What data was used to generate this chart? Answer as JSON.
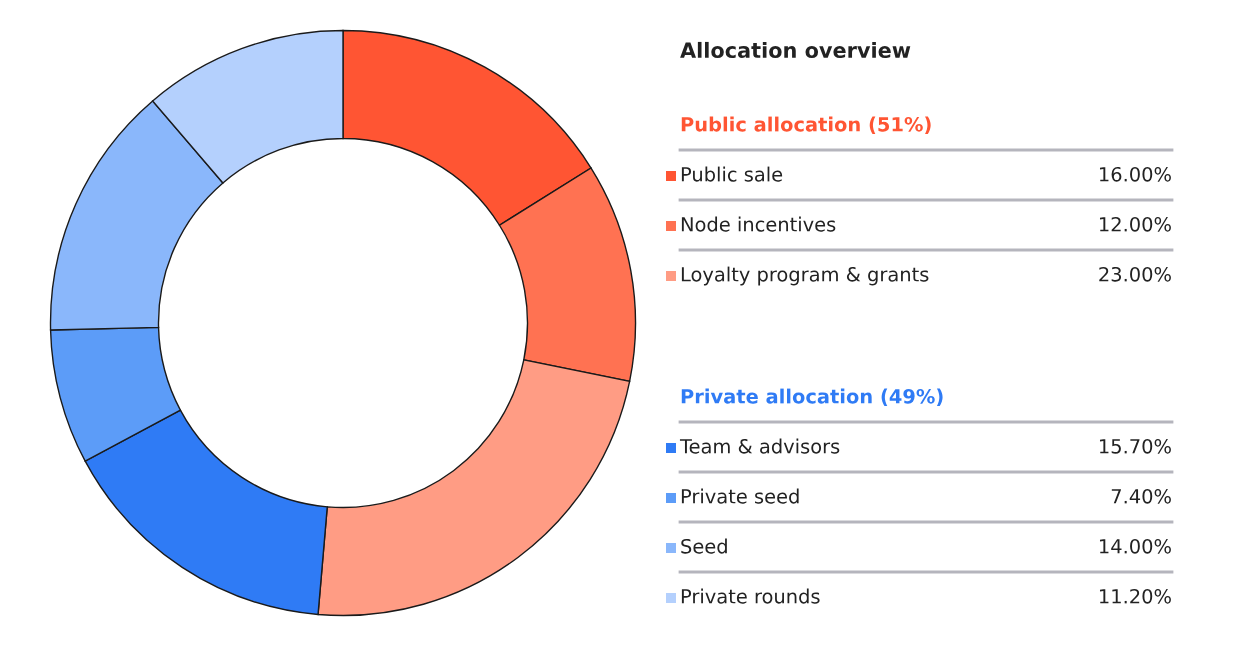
{
  "chart_data": {
    "type": "donut",
    "title": "Allocation overview",
    "legend": "right",
    "categories": [
      "Public sale",
      "Node incentives",
      "Loyalty program & grants",
      "Team & advisors",
      "Private seed",
      "Seed",
      "Private rounds"
    ],
    "values": [
      16.0,
      12.0,
      23.0,
      15.7,
      7.4,
      14.0,
      11.2
    ],
    "value_labels": [
      "16.00%",
      "12.00%",
      "23.00%",
      "15.70%",
      "7.40%",
      "14.00%",
      "11.20%"
    ],
    "colors": [
      "#ff5533",
      "#ff7252",
      "#ff9c84",
      "#2f7bf5",
      "#5c9cf8",
      "#8ab7fb",
      "#b4d0fd"
    ],
    "annotations": [
      {
        "text": "Public allocation (51%)",
        "x": "Public sale"
      },
      {
        "text": "Private allocation (49%)",
        "x": "Team & advisors"
      }
    ]
  }
}
